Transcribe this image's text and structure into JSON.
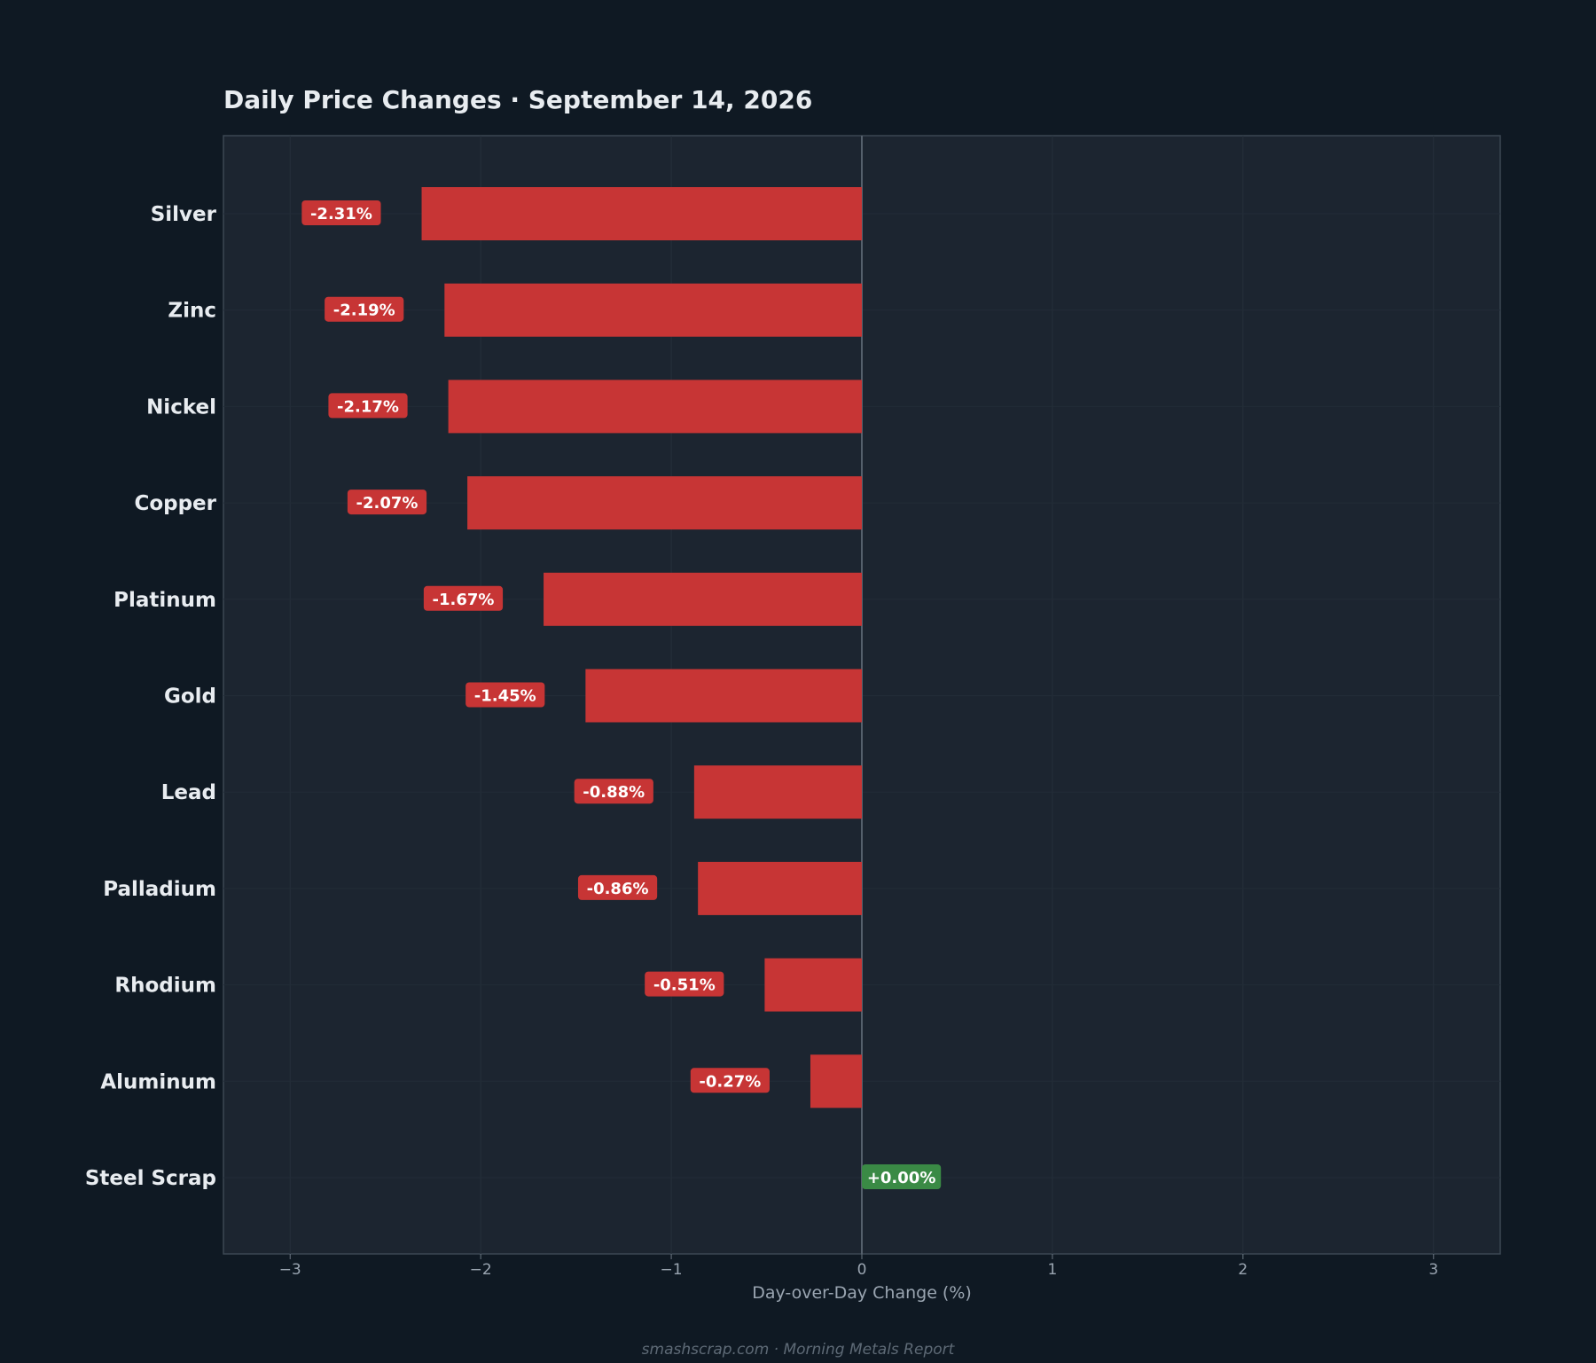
{
  "chart_data": {
    "type": "bar",
    "orientation": "horizontal",
    "title": "Daily Price Changes  ·  September 14, 2026",
    "xlabel": "Day-over-Day Change (%)",
    "ylabel": "",
    "categories": [
      "Silver",
      "Zinc",
      "Nickel",
      "Copper",
      "Platinum",
      "Gold",
      "Lead",
      "Palladium",
      "Rhodium",
      "Aluminum",
      "Steel Scrap"
    ],
    "values": [
      -2.31,
      -2.19,
      -2.17,
      -2.07,
      -1.67,
      -1.45,
      -0.88,
      -0.86,
      -0.51,
      -0.27,
      0.0
    ],
    "value_labels": [
      "-2.31%",
      "-2.19%",
      "-2.17%",
      "-2.07%",
      "-1.67%",
      "-1.45%",
      "-0.88%",
      "-0.86%",
      "-0.51%",
      "-0.27%",
      "+0.00%"
    ],
    "xlim": [
      -3.35,
      3.35
    ],
    "xticks": [
      -3,
      -2,
      -1,
      0,
      1,
      2,
      3
    ],
    "xtick_labels": [
      "−3",
      "−2",
      "−1",
      "0",
      "1",
      "2",
      "3"
    ],
    "grid": true,
    "legend": "none",
    "colors": {
      "negative": "#c73535",
      "positive": "#3a8a45",
      "background": "#0f1923",
      "plot_background": "#1c2530",
      "zero_line": "#55606c"
    }
  },
  "footer": "smashscrap.com  ·  Morning Metals Report"
}
